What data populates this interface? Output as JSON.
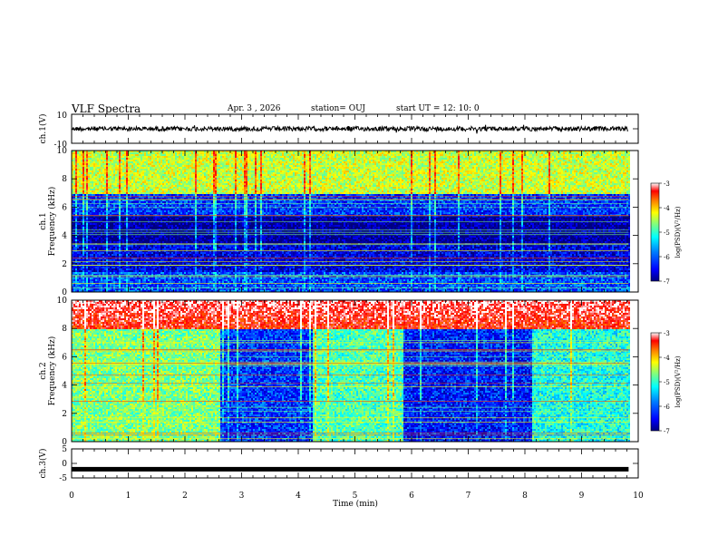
{
  "header": {
    "title": "VLF Spectra",
    "date": "Apr. 3 , 2026",
    "station": "station= OUJ",
    "start": "start UT = 12: 10: 0"
  },
  "chart_data": [
    {
      "type": "line",
      "panel": "ch1-waveform",
      "ylabel": "ch.1(V)",
      "yticks": [
        "10",
        "-10"
      ],
      "ylim": [
        -10,
        10
      ],
      "xlim": [
        0,
        10
      ],
      "data_end_min": 9.83,
      "description_level": "noisy waveform centered near 0 V, amplitude about ±1 V"
    },
    {
      "type": "heatmap",
      "panel": "ch1-spectrogram",
      "ylabel_channel": "ch.1",
      "ylabel": "Frequency (kHz)",
      "yticks": [
        "0",
        "2",
        "4",
        "6",
        "8",
        "10"
      ],
      "ylim": [
        0,
        10
      ],
      "xlim": [
        0,
        10
      ],
      "data_end_min": 9.83,
      "colorbar": {
        "label": "log(PSD)(V²/Hz)",
        "ticks": [
          "-3",
          "-4",
          "-5",
          "-6",
          "-7"
        ],
        "range": [
          -7,
          -3
        ]
      },
      "bands": [
        {
          "from_khz": 7.0,
          "to_khz": 10.0,
          "log_psd": -4.7
        },
        {
          "from_khz": 5.5,
          "to_khz": 7.0,
          "log_psd": -6.3
        },
        {
          "from_khz": 3.5,
          "to_khz": 5.5,
          "log_psd": -6.9
        },
        {
          "from_khz": 1.5,
          "to_khz": 3.5,
          "log_psd": -6.6
        },
        {
          "from_khz": 0.0,
          "to_khz": 1.5,
          "log_psd": -6.2
        }
      ]
    },
    {
      "type": "heatmap",
      "panel": "ch2-spectrogram",
      "ylabel_channel": "ch.2",
      "ylabel": "Frequency (kHz)",
      "yticks": [
        "0",
        "2",
        "4",
        "6",
        "8",
        "10"
      ],
      "ylim": [
        0,
        10
      ],
      "xlim": [
        0,
        10
      ],
      "data_end_min": 9.83,
      "colorbar": {
        "label": "log(PSD)(V²/Hz)",
        "ticks": [
          "-3",
          "-4",
          "-5",
          "-6",
          "-7"
        ],
        "range": [
          -7,
          -3
        ]
      },
      "upper_band": {
        "from_khz": 8.0,
        "to_khz": 10.0,
        "log_psd": -3.6
      },
      "segments": [
        {
          "from_min": 0.0,
          "to_min": 2.6,
          "log_psd": -5.0
        },
        {
          "from_min": 2.6,
          "to_min": 4.25,
          "log_psd": -6.3
        },
        {
          "from_min": 4.25,
          "to_min": 5.85,
          "log_psd": -5.2
        },
        {
          "from_min": 5.85,
          "to_min": 8.1,
          "log_psd": -6.4
        },
        {
          "from_min": 8.1,
          "to_min": 9.83,
          "log_psd": -5.4
        }
      ]
    },
    {
      "type": "line",
      "panel": "ch3-waveform",
      "ylabel": "ch.3(V)",
      "yticks": [
        "5",
        "0",
        "-5"
      ],
      "ylim": [
        -5,
        5
      ],
      "xlim": [
        0,
        10
      ],
      "data_end_min": 9.83,
      "level_v": -2.0
    }
  ],
  "xaxis": {
    "label": "Time (min)",
    "ticks": [
      "0",
      "1",
      "2",
      "3",
      "4",
      "5",
      "6",
      "7",
      "8",
      "9",
      "10"
    ]
  },
  "colors": {
    "colormap": [
      "#00007f",
      "#0000ff",
      "#007fff",
      "#00ffff",
      "#7fff7f",
      "#ffff00",
      "#ff7f00",
      "#ff0000",
      "#ffffff"
    ]
  }
}
